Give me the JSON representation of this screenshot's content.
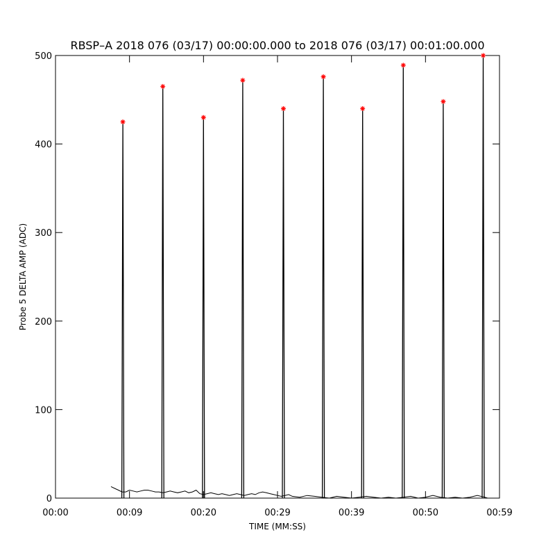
{
  "chart_data": {
    "type": "line",
    "title": "RBSP–A 2018 076 (03/17) 00:00:00.000 to 2018 076 (03/17) 00:01:00.000",
    "xlabel": "TIME (MM:SS)",
    "ylabel": "Probe 5 DELTA AMP (ADC)",
    "x_unit": "seconds",
    "xlim": [
      0,
      60
    ],
    "ylim": [
      0,
      500
    ],
    "x_ticks": [
      {
        "value": 0,
        "label": "00:00"
      },
      {
        "value": 10,
        "label": "00:09"
      },
      {
        "value": 20,
        "label": "00:20"
      },
      {
        "value": 30,
        "label": "00:29"
      },
      {
        "value": 40,
        "label": "00:39"
      },
      {
        "value": 50,
        "label": "00:50"
      },
      {
        "value": 60,
        "label": "00:59"
      }
    ],
    "y_ticks": [
      {
        "value": 0,
        "label": "0"
      },
      {
        "value": 100,
        "label": "100"
      },
      {
        "value": 200,
        "label": "200"
      },
      {
        "value": 300,
        "label": "300"
      },
      {
        "value": 400,
        "label": "400"
      },
      {
        "value": 500,
        "label": "500"
      }
    ],
    "grid": false,
    "series": [
      {
        "color": "#000000",
        "baseline": {
          "x": [
            7.5,
            8.0,
            8.5,
            9.0,
            9.5,
            10.0,
            10.5,
            11.0,
            11.5,
            12.0,
            12.5,
            13.0,
            13.5,
            14.0,
            14.5,
            15.0,
            15.5,
            16.0,
            16.5,
            17.0,
            17.5,
            18.0,
            18.5,
            19.0,
            19.5,
            20.0,
            20.5,
            21.0,
            21.5,
            22.0,
            22.5,
            23.0,
            23.5,
            24.0,
            24.5,
            25.0,
            25.5,
            26.0,
            26.5,
            27.0,
            27.5,
            28.0,
            28.5,
            29.0,
            29.5,
            30.0,
            30.5,
            31.0,
            31.5,
            32.0,
            33.0,
            34.0,
            35.0,
            36.0,
            37.0,
            38.0,
            39.0,
            40.0,
            41.0,
            42.0,
            43.0,
            44.0,
            45.0,
            46.0,
            47.0,
            48.0,
            49.0,
            50.0,
            51.0,
            52.0,
            53.0,
            54.0,
            55.0,
            56.0,
            57.0,
            58.0,
            58.4
          ],
          "y": [
            13,
            11,
            9,
            7,
            7,
            9,
            8,
            7,
            8,
            9,
            9,
            8,
            7,
            7,
            6,
            7,
            8,
            7,
            6,
            7,
            8,
            6,
            7,
            9,
            5,
            4,
            5,
            6,
            5,
            4,
            5,
            4,
            3,
            4,
            5,
            4,
            3,
            4,
            5,
            4,
            6,
            7,
            6,
            5,
            4,
            3,
            2,
            3,
            4,
            2,
            1,
            3,
            2,
            1,
            0,
            2,
            1,
            0,
            1,
            2,
            1,
            0,
            1,
            0,
            1,
            2,
            0,
            1,
            3,
            1,
            0,
            1,
            0,
            1,
            3,
            1,
            0
          ]
        },
        "spikes": {
          "x": [
            9.1,
            14.5,
            20.0,
            25.3,
            30.8,
            36.2,
            41.5,
            47.0,
            52.4,
            57.8
          ],
          "y": [
            425,
            465,
            430,
            472,
            440,
            476,
            440,
            489,
            448,
            500
          ]
        }
      }
    ],
    "peak_markers": {
      "symbol": "*",
      "color": "#ff0000",
      "x": [
        9.1,
        14.5,
        20.0,
        25.3,
        30.8,
        36.2,
        41.5,
        47.0,
        52.4,
        57.8
      ],
      "y": [
        425,
        465,
        430,
        472,
        440,
        476,
        440,
        489,
        448,
        500
      ]
    }
  }
}
